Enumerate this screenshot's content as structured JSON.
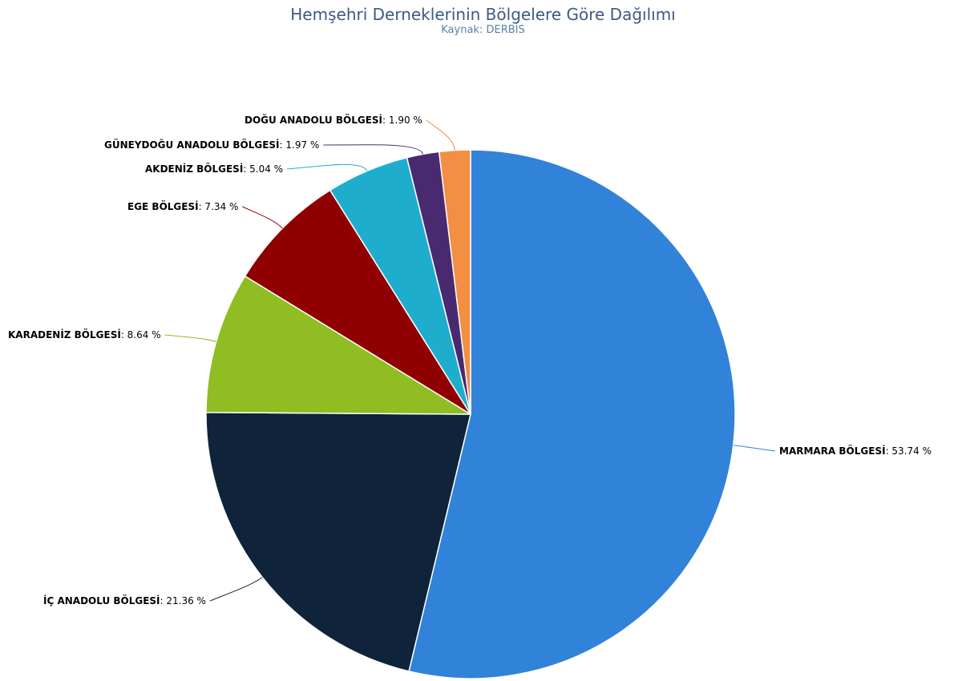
{
  "chart_data": {
    "type": "pie",
    "title": "Hemşehri Derneklerinin Bölgelere Göre Dağılımı",
    "subtitle": "Kaynak: DERBİS",
    "unit": "%",
    "slices": [
      {
        "name": "MARMARA BÖLGESİ",
        "value": 53.74,
        "display": "53.74 %",
        "color": "#3182d9"
      },
      {
        "name": "İÇ ANADOLU BÖLGESİ",
        "value": 21.36,
        "display": "21.36 %",
        "color": "#0f233a"
      },
      {
        "name": "KARADENİZ BÖLGESİ",
        "value": 8.64,
        "display": "8.64 %",
        "color": "#8fbd22"
      },
      {
        "name": "EGE BÖLGESİ",
        "value": 7.34,
        "display": "7.34 %",
        "color": "#910000"
      },
      {
        "name": "AKDENİZ BÖLGESİ",
        "value": 5.04,
        "display": "5.04 %",
        "color": "#1fadce"
      },
      {
        "name": "GÜNEYDOĞU ANADOLU BÖLGESİ",
        "value": 1.97,
        "display": "1.97 %",
        "color": "#492970"
      },
      {
        "name": "DOĞU ANADOLU BÖLGESİ",
        "value": 1.9,
        "display": "1.90 %",
        "color": "#f28f43"
      }
    ]
  }
}
